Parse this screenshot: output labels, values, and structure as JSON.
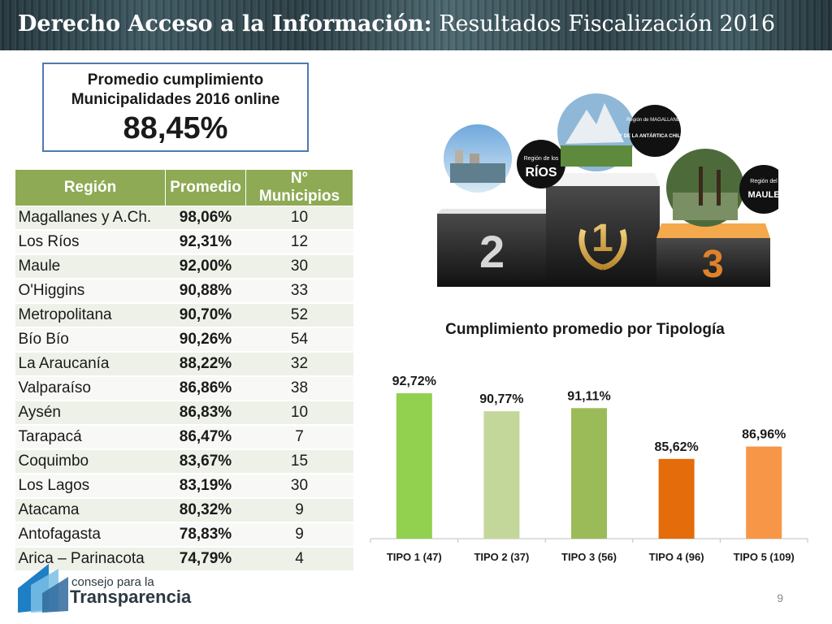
{
  "header": {
    "title_bold": "Derecho Acceso a la Información:",
    "title_rest": "Resultados Fiscalización 2016"
  },
  "kpi": {
    "label": "Promedio cumplimiento Municipalidades 2016 online",
    "value": "88,45%"
  },
  "table": {
    "headers": [
      "Región",
      "Promedio",
      "N° Municipios"
    ],
    "rows": [
      [
        "Magallanes y A.Ch.",
        "98,06%",
        "10"
      ],
      [
        "Los Ríos",
        "92,31%",
        "12"
      ],
      [
        "Maule",
        "92,00%",
        "30"
      ],
      [
        "O'Higgins",
        "90,88%",
        "33"
      ],
      [
        "Metropolitana",
        "90,70%",
        "52"
      ],
      [
        "Bío Bío",
        "90,26%",
        "54"
      ],
      [
        "La Araucanía",
        "88,22%",
        "32"
      ],
      [
        "Valparaíso",
        "86,86%",
        "38"
      ],
      [
        "Aysén",
        "86,83%",
        "10"
      ],
      [
        "Tarapacá",
        "86,47%",
        "7"
      ],
      [
        "Coquimbo",
        "83,67%",
        "15"
      ],
      [
        "Los Lagos",
        "83,19%",
        "30"
      ],
      [
        "Atacama",
        "80,32%",
        "9"
      ],
      [
        "Antofagasta",
        "78,83%",
        "9"
      ],
      [
        "Arica – Parinacota",
        "74,79%",
        "4"
      ]
    ]
  },
  "podium": {
    "place1": {
      "number": "1",
      "label_top": "Región de MAGALLANES",
      "label_bottom": "Y DE LA ANTÁRTICA CHILENA"
    },
    "place2": {
      "number": "2",
      "label_top": "Región de los",
      "label_bottom": "RÍOS"
    },
    "place3": {
      "number": "3",
      "label_top": "Región del",
      "label_bottom": "MAULE"
    }
  },
  "chart_data": {
    "type": "bar",
    "title": "Cumplimiento promedio por Tipología",
    "categories": [
      "TIPO 1 (47)",
      "TIPO 2 (37)",
      "TIPO 3 (56)",
      "TIPO 4 (96)",
      "TIPO 5 (109)"
    ],
    "values": [
      92.72,
      90.77,
      91.11,
      85.62,
      86.96
    ],
    "value_labels": [
      "92,72%",
      "90,77%",
      "91,11%",
      "85,62%",
      "86,96%"
    ],
    "colors": [
      "#92d050",
      "#c4d79b",
      "#9bbb59",
      "#e46c0a",
      "#f79646"
    ],
    "xlabel": "",
    "ylabel": "",
    "grid": false,
    "legend": "none"
  },
  "logo": {
    "line1": "consejo para la",
    "line2": "Transparencia"
  },
  "page_number": "9"
}
